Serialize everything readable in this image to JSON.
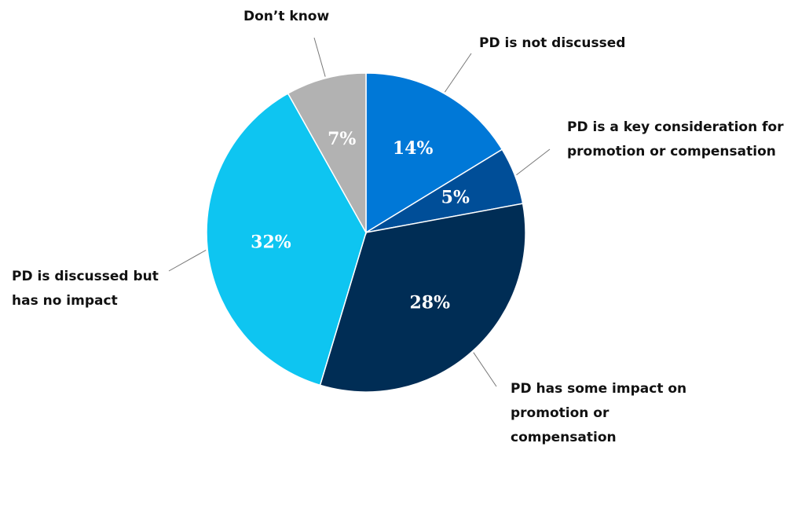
{
  "chart_data": {
    "type": "pie",
    "categories": [
      "PD is not discussed",
      "PD is a key consideration for promotion or compensation",
      "PD has some impact on promotion or compensation",
      "PD is discussed but has no impact",
      "Don’t know"
    ],
    "values": [
      14,
      5,
      28,
      32,
      7
    ],
    "value_labels": [
      "14%",
      "5%",
      "28%",
      "32%",
      "7%"
    ],
    "colors": [
      "#0078d7",
      "#004e98",
      "#002d55",
      "#0ec5f1",
      "#b2b2b2"
    ]
  }
}
